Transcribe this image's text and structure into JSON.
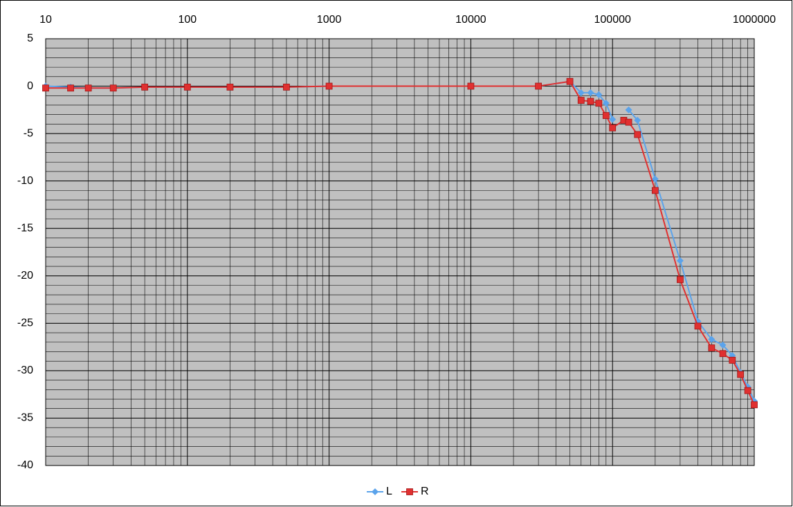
{
  "chart_data": {
    "type": "line",
    "x": [
      10,
      15,
      20,
      30,
      50,
      100,
      200,
      500,
      1000,
      10000,
      30000,
      50000,
      60000,
      70000,
      80000,
      90000,
      100000,
      120000,
      130000,
      150000,
      200000,
      300000,
      400000,
      500000,
      600000,
      700000,
      800000,
      900000,
      1000000
    ],
    "series": [
      {
        "name": "L",
        "color": "#5ba3eb",
        "marker": "diamond",
        "values": [
          0,
          -0.1,
          -0.2,
          -0.2,
          -0.1,
          -0.1,
          -0.1,
          -0.1,
          0,
          0,
          0,
          0.5,
          -0.7,
          -0.7,
          -0.9,
          -1.8,
          -3.5,
          null,
          -2.5,
          -3.6,
          -9.8,
          -18.4,
          -24.8,
          -26.7,
          -27.3,
          -28.4,
          -30.2,
          -31.7,
          -33.2
        ]
      },
      {
        "name": "R",
        "color": "#e03030",
        "marker": "square",
        "values": [
          -0.2,
          -0.2,
          -0.2,
          -0.2,
          -0.1,
          -0.1,
          -0.1,
          -0.1,
          0,
          0,
          0,
          0.5,
          -1.5,
          -1.6,
          -1.8,
          -3.1,
          -4.4,
          -3.6,
          -3.8,
          -5.1,
          -11.0,
          -20.4,
          -25.3,
          -27.6,
          -28.2,
          -28.9,
          -30.4,
          -32.1,
          -33.6
        ]
      }
    ],
    "xscale": "log",
    "xlim": [
      10,
      1000000
    ],
    "xticks": [
      10,
      100,
      1000,
      10000,
      100000,
      1000000
    ],
    "ylim": [
      -40,
      5
    ],
    "yticks": [
      5,
      0,
      -5,
      -10,
      -15,
      -20,
      -25,
      -30,
      -35,
      -40
    ],
    "grid": true,
    "minor_grid": true,
    "legend": "bottom"
  }
}
